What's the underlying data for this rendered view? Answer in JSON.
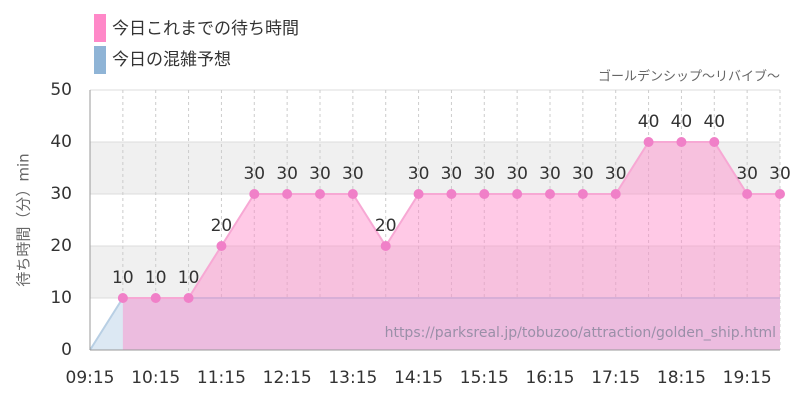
{
  "chart_data": {
    "type": "area",
    "legend": [
      "今日これまでの待ち時間",
      "今日の混雑予想"
    ],
    "subtitle": "ゴールデンシップ〜リバイブ〜",
    "y_label": "待ち時間（分）min",
    "watermark": "https://parksreal.jp/tobuzoo/attraction/golden_ship.html",
    "categories": [
      "09:15",
      null,
      "10:15",
      null,
      "11:15",
      null,
      "12:15",
      null,
      "13:15",
      null,
      "14:15",
      null,
      "15:15",
      null,
      "16:15",
      null,
      "17:15",
      null,
      "18:15",
      null,
      "19:15",
      null
    ],
    "series": [
      {
        "name": "今日の混雑予想",
        "color": "#8fb4d6",
        "values": [
          0,
          10,
          10,
          10,
          10,
          10,
          10,
          10,
          10,
          10,
          10,
          10,
          10,
          10,
          10,
          10,
          10,
          10,
          10,
          10,
          10,
          10
        ]
      },
      {
        "name": "今日これまでの待ち時間",
        "color": "#ff88c8",
        "values": [
          null,
          10,
          10,
          10,
          20,
          30,
          30,
          30,
          30,
          20,
          30,
          30,
          30,
          30,
          30,
          30,
          30,
          40,
          40,
          40,
          30,
          30
        ]
      }
    ],
    "ylim": [
      0,
      50
    ],
    "yticks": [
      0,
      10,
      20,
      30,
      40,
      50
    ],
    "grid": true
  }
}
